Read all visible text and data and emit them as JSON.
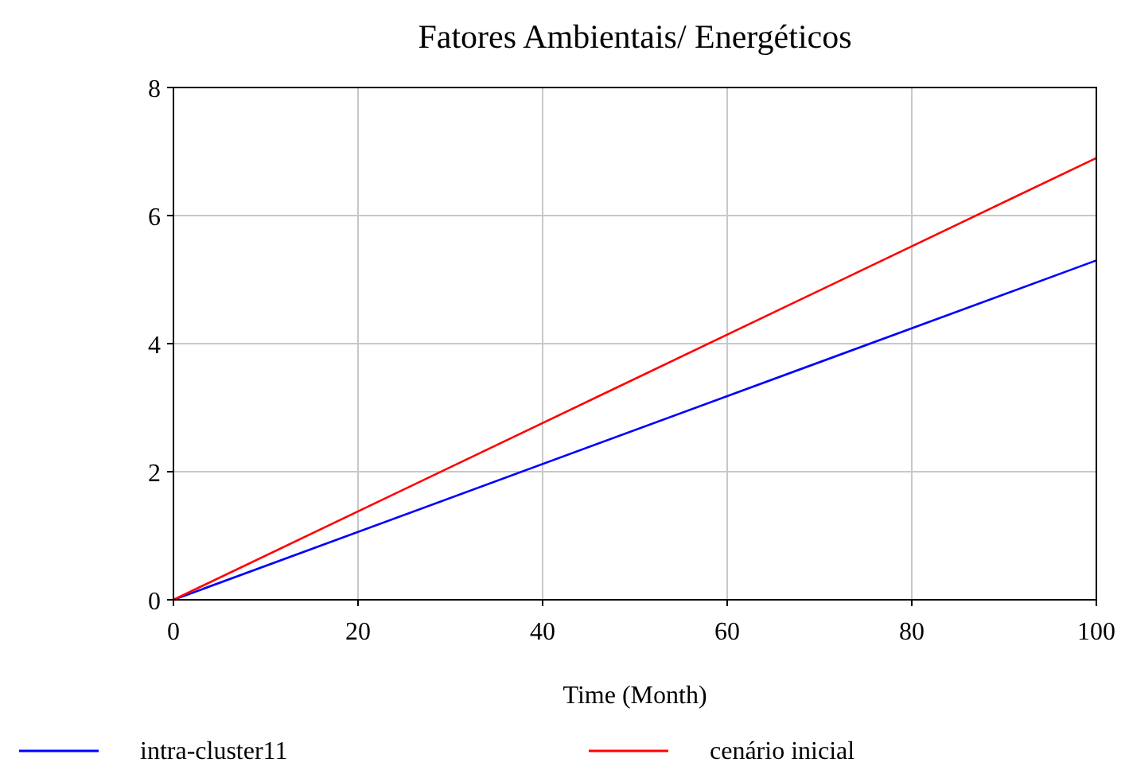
{
  "chart_data": {
    "type": "line",
    "title": "Fatores Ambientais/ Energéticos",
    "xlabel": "Time (Month)",
    "x": [
      0,
      100
    ],
    "xlim": [
      0,
      100
    ],
    "xticks": [
      0,
      20,
      40,
      60,
      80,
      100
    ],
    "ylim": [
      0,
      8
    ],
    "yticks": [
      0,
      2,
      4,
      6,
      8
    ],
    "grid": true,
    "legend": "bottom",
    "series": [
      {
        "name": "intra-cluster11",
        "color": "#0000ff",
        "values": [
          0,
          5.3
        ]
      },
      {
        "name": "cenário inicial",
        "color": "#ff0000",
        "values": [
          0,
          6.9
        ]
      }
    ]
  }
}
